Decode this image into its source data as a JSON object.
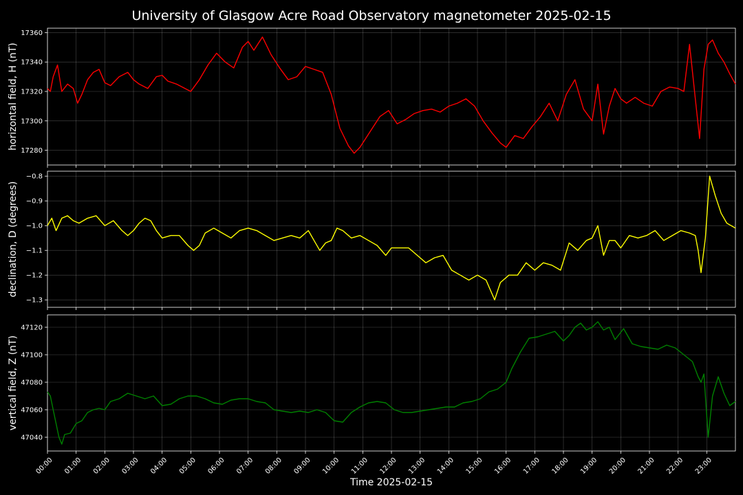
{
  "chart_data": {
    "type": "line",
    "title": "University of Glasgow Acre Road Observatory magnetometer 2025-02-15",
    "xlabel": "Time 2025-02-15",
    "x_unit": "hours",
    "x_ticks": [
      "00:00",
      "01:00",
      "02:00",
      "03:00",
      "04:00",
      "05:00",
      "06:00",
      "07:00",
      "08:00",
      "09:00",
      "10:00",
      "11:00",
      "12:00",
      "13:00",
      "14:00",
      "15:00",
      "16:00",
      "17:00",
      "18:00",
      "19:00",
      "20:00",
      "21:00",
      "22:00",
      "23:00"
    ],
    "x_range": [
      0,
      24
    ],
    "grid": true,
    "panels": [
      {
        "ylabel": "horizontal field, H (nT)",
        "color": "#ff0000",
        "ylim": [
          17270,
          17363
        ],
        "yticks": [
          17280,
          17300,
          17320,
          17340,
          17360
        ],
        "x": [
          0,
          0.1,
          0.2,
          0.35,
          0.5,
          0.7,
          0.9,
          1.05,
          1.2,
          1.4,
          1.6,
          1.8,
          2.0,
          2.2,
          2.5,
          2.8,
          3.0,
          3.2,
          3.5,
          3.8,
          4.0,
          4.2,
          4.5,
          4.8,
          5.0,
          5.3,
          5.6,
          5.9,
          6.2,
          6.5,
          6.8,
          7.0,
          7.2,
          7.5,
          7.8,
          8.1,
          8.4,
          8.7,
          9.0,
          9.3,
          9.6,
          9.9,
          10.2,
          10.5,
          10.7,
          10.9,
          11.1,
          11.3,
          11.6,
          11.9,
          12.2,
          12.5,
          12.8,
          13.1,
          13.4,
          13.7,
          14.0,
          14.3,
          14.6,
          14.9,
          15.2,
          15.5,
          15.8,
          16.0,
          16.3,
          16.6,
          16.9,
          17.2,
          17.5,
          17.8,
          18.1,
          18.4,
          18.7,
          19.0,
          19.2,
          19.4,
          19.6,
          19.8,
          20.0,
          20.2,
          20.5,
          20.8,
          21.1,
          21.4,
          21.7,
          22.0,
          22.2,
          22.4,
          22.6,
          22.75,
          22.9,
          23.05,
          23.2,
          23.4,
          23.6,
          23.8,
          24.0
        ],
        "values": [
          17322,
          17320,
          17330,
          17338,
          17320,
          17325,
          17322,
          17312,
          17318,
          17328,
          17333,
          17335,
          17326,
          17324,
          17330,
          17333,
          17328,
          17325,
          17322,
          17330,
          17331,
          17327,
          17325,
          17322,
          17320,
          17328,
          17338,
          17346,
          17340,
          17336,
          17350,
          17354,
          17348,
          17357,
          17345,
          17336,
          17328,
          17330,
          17337,
          17335,
          17333,
          17318,
          17295,
          17283,
          17278,
          17282,
          17288,
          17294,
          17303,
          17307,
          17298,
          17301,
          17305,
          17307,
          17308,
          17306,
          17310,
          17312,
          17315,
          17310,
          17300,
          17292,
          17285,
          17282,
          17290,
          17288,
          17296,
          17303,
          17312,
          17300,
          17318,
          17328,
          17308,
          17300,
          17325,
          17291,
          17310,
          17322,
          17315,
          17312,
          17316,
          17312,
          17310,
          17320,
          17323,
          17322,
          17320,
          17352,
          17315,
          17288,
          17335,
          17352,
          17355,
          17346,
          17340,
          17332,
          17325
        ]
      },
      {
        "ylabel": "declination, D (degrees)",
        "color": "#ffff00",
        "ylim": [
          -1.33,
          -0.78
        ],
        "yticks": [
          -1.3,
          -1.2,
          -1.1,
          -1.0,
          -0.9,
          -0.8
        ],
        "x": [
          0,
          0.15,
          0.3,
          0.5,
          0.7,
          0.9,
          1.1,
          1.4,
          1.7,
          2.0,
          2.3,
          2.6,
          2.8,
          3.0,
          3.2,
          3.4,
          3.6,
          3.8,
          4.0,
          4.3,
          4.6,
          4.9,
          5.1,
          5.3,
          5.5,
          5.8,
          6.1,
          6.4,
          6.7,
          7.0,
          7.3,
          7.6,
          7.9,
          8.2,
          8.5,
          8.8,
          9.1,
          9.3,
          9.5,
          9.7,
          9.9,
          10.1,
          10.3,
          10.6,
          10.9,
          11.2,
          11.5,
          11.8,
          12.0,
          12.3,
          12.6,
          12.9,
          13.2,
          13.5,
          13.8,
          14.1,
          14.4,
          14.7,
          15.0,
          15.3,
          15.6,
          15.8,
          16.1,
          16.4,
          16.7,
          17.0,
          17.3,
          17.6,
          17.9,
          18.2,
          18.5,
          18.8,
          19.0,
          19.2,
          19.4,
          19.6,
          19.8,
          20.0,
          20.3,
          20.6,
          20.9,
          21.2,
          21.5,
          21.8,
          22.1,
          22.4,
          22.6,
          22.7,
          22.8,
          22.95,
          23.1,
          23.3,
          23.5,
          23.7,
          24.0
        ],
        "values": [
          -1.0,
          -0.97,
          -1.02,
          -0.97,
          -0.96,
          -0.98,
          -0.99,
          -0.97,
          -0.96,
          -1.0,
          -0.98,
          -1.02,
          -1.04,
          -1.02,
          -0.99,
          -0.97,
          -0.98,
          -1.02,
          -1.05,
          -1.04,
          -1.04,
          -1.08,
          -1.1,
          -1.08,
          -1.03,
          -1.01,
          -1.03,
          -1.05,
          -1.02,
          -1.01,
          -1.02,
          -1.04,
          -1.06,
          -1.05,
          -1.04,
          -1.05,
          -1.02,
          -1.06,
          -1.1,
          -1.07,
          -1.06,
          -1.01,
          -1.02,
          -1.05,
          -1.04,
          -1.06,
          -1.08,
          -1.12,
          -1.09,
          -1.09,
          -1.09,
          -1.12,
          -1.15,
          -1.13,
          -1.12,
          -1.18,
          -1.2,
          -1.22,
          -1.2,
          -1.22,
          -1.3,
          -1.23,
          -1.2,
          -1.2,
          -1.15,
          -1.18,
          -1.15,
          -1.16,
          -1.18,
          -1.07,
          -1.1,
          -1.06,
          -1.05,
          -1.0,
          -1.12,
          -1.06,
          -1.06,
          -1.09,
          -1.04,
          -1.05,
          -1.04,
          -1.02,
          -1.06,
          -1.04,
          -1.02,
          -1.03,
          -1.04,
          -1.1,
          -1.19,
          -1.05,
          -0.8,
          -0.88,
          -0.95,
          -0.99,
          -1.01
        ]
      },
      {
        "ylabel": "vertical field, Z (nT)",
        "color": "#008000",
        "ylim": [
          47030,
          47129
        ],
        "yticks": [
          47040,
          47060,
          47080,
          47100,
          47120
        ],
        "x": [
          0,
          0.1,
          0.2,
          0.3,
          0.4,
          0.5,
          0.6,
          0.8,
          1.0,
          1.2,
          1.4,
          1.6,
          1.8,
          2.0,
          2.2,
          2.5,
          2.8,
          3.1,
          3.4,
          3.7,
          4.0,
          4.3,
          4.6,
          4.9,
          5.2,
          5.5,
          5.8,
          6.1,
          6.4,
          6.7,
          7.0,
          7.3,
          7.6,
          7.9,
          8.2,
          8.5,
          8.8,
          9.1,
          9.4,
          9.7,
          10.0,
          10.3,
          10.6,
          10.9,
          11.2,
          11.5,
          11.8,
          12.1,
          12.4,
          12.7,
          13.0,
          13.3,
          13.6,
          13.9,
          14.2,
          14.5,
          14.8,
          15.1,
          15.4,
          15.7,
          16.0,
          16.2,
          16.5,
          16.8,
          17.1,
          17.4,
          17.7,
          18.0,
          18.2,
          18.4,
          18.6,
          18.8,
          19.0,
          19.2,
          19.4,
          19.6,
          19.8,
          20.1,
          20.4,
          20.7,
          21.0,
          21.3,
          21.6,
          21.9,
          22.2,
          22.5,
          22.7,
          22.8,
          22.9,
          23.05,
          23.2,
          23.4,
          23.6,
          23.8,
          24.0
        ],
        "values": [
          47073,
          47070,
          47060,
          47050,
          47040,
          47035,
          47042,
          47043,
          47050,
          47052,
          47058,
          47060,
          47061,
          47060,
          47066,
          47068,
          47072,
          47070,
          47068,
          47070,
          47063,
          47064,
          47068,
          47070,
          47070,
          47068,
          47065,
          47064,
          47067,
          47068,
          47068,
          47066,
          47065,
          47060,
          47059,
          47058,
          47059,
          47058,
          47060,
          47058,
          47052,
          47051,
          47058,
          47062,
          47065,
          47066,
          47065,
          47060,
          47058,
          47058,
          47059,
          47060,
          47061,
          47062,
          47062,
          47065,
          47066,
          47068,
          47073,
          47075,
          47080,
          47090,
          47102,
          47112,
          47113,
          47115,
          47117,
          47110,
          47114,
          47120,
          47123,
          47118,
          47120,
          47124,
          47118,
          47120,
          47111,
          47119,
          47108,
          47106,
          47105,
          47104,
          47107,
          47105,
          47100,
          47095,
          47084,
          47080,
          47086,
          47040,
          47070,
          47084,
          47072,
          47063,
          47066
        ]
      }
    ]
  }
}
